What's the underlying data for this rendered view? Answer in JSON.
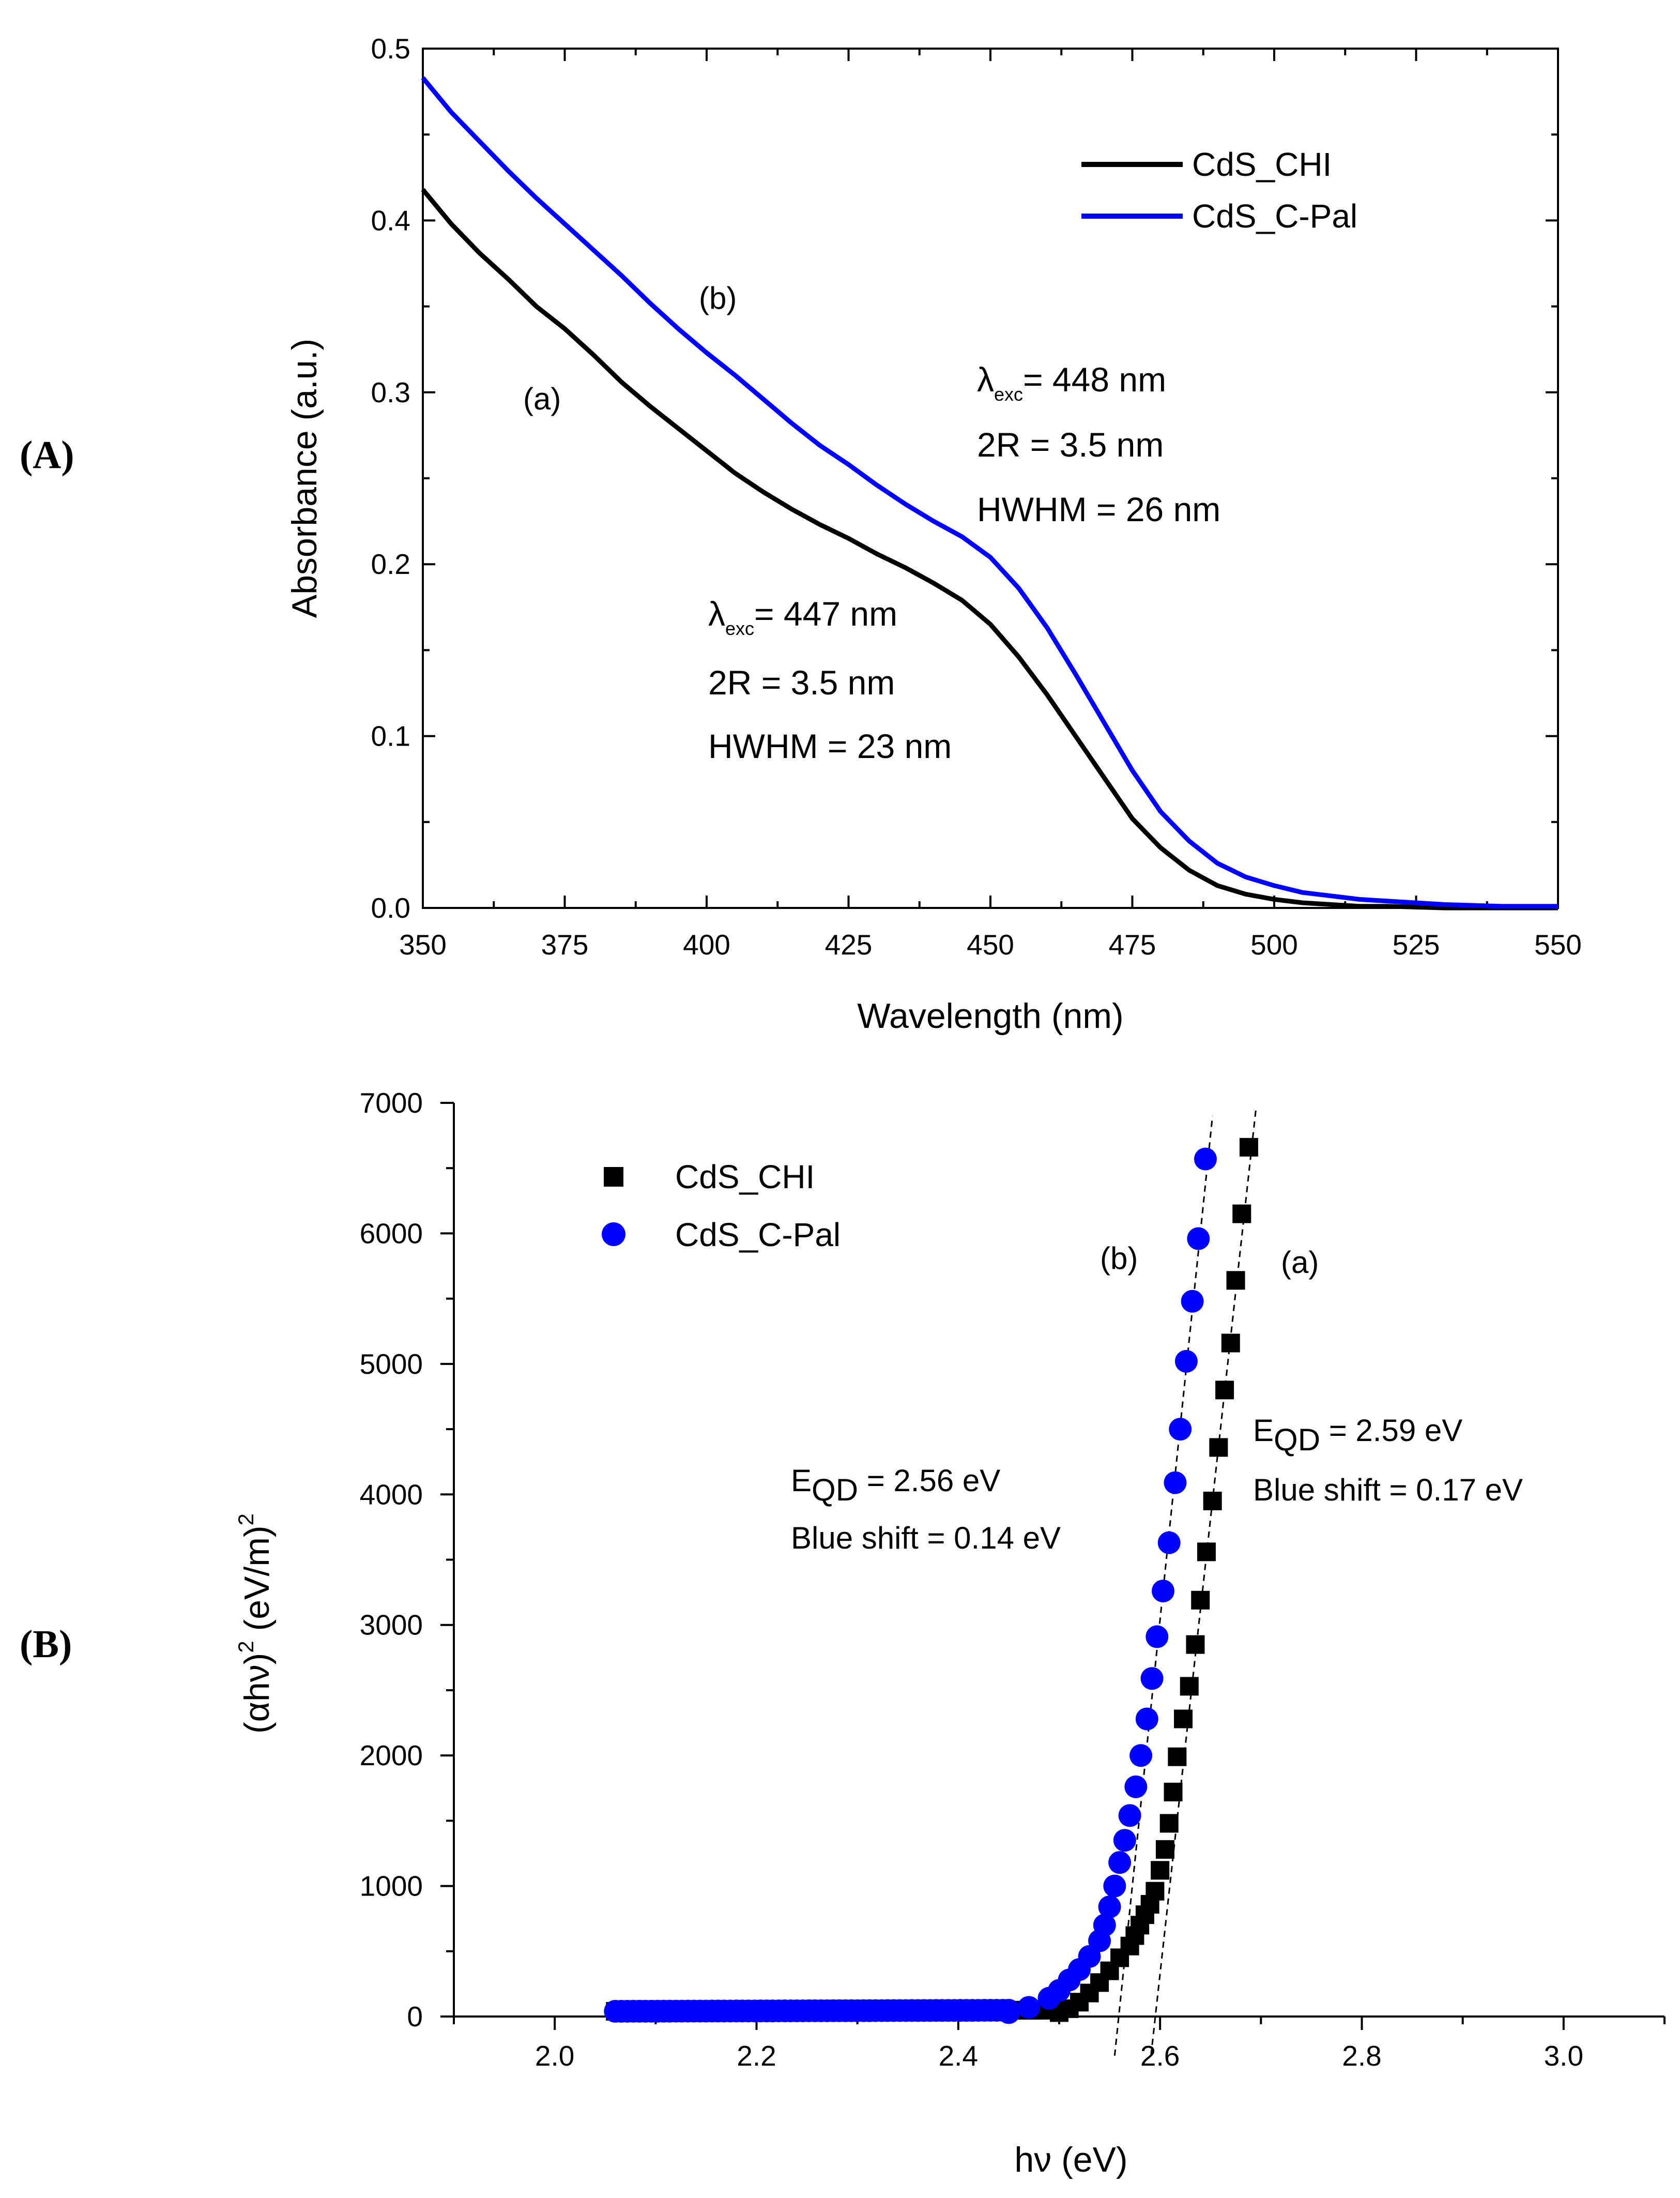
{
  "panels": {
    "a_label": "(A)",
    "b_label": "(B)"
  },
  "chart_data": [
    {
      "type": "line",
      "panel": "A",
      "xlabel": "Wavelength (nm)",
      "ylabel": "Absorbance (a.u.)",
      "xlim": [
        350,
        550
      ],
      "ylim": [
        0.0,
        0.5
      ],
      "xticks": [
        350,
        375,
        400,
        425,
        450,
        475,
        500,
        525,
        550
      ],
      "xtick_labels": [
        "350",
        "375",
        "400",
        "425",
        "450",
        "475",
        "500",
        "525",
        "550"
      ],
      "yticks": [
        0.0,
        0.1,
        0.2,
        0.3,
        0.4,
        0.5
      ],
      "ytick_labels": [
        "0.0",
        "0.1",
        "0.2",
        "0.3",
        "0.4",
        "0.5"
      ],
      "legend_position": "top-right",
      "series": [
        {
          "name": "CdS_CHI",
          "color": "#000000",
          "x": [
            350,
            355,
            360,
            365,
            370,
            375,
            380,
            385,
            390,
            395,
            400,
            405,
            410,
            415,
            420,
            425,
            430,
            435,
            440,
            445,
            450,
            455,
            460,
            465,
            470,
            475,
            480,
            485,
            490,
            495,
            500,
            505,
            510,
            515,
            520,
            530,
            540,
            550
          ],
          "y": [
            0.418,
            0.398,
            0.381,
            0.366,
            0.35,
            0.337,
            0.322,
            0.306,
            0.292,
            0.279,
            0.266,
            0.253,
            0.242,
            0.232,
            0.223,
            0.215,
            0.206,
            0.198,
            0.189,
            0.179,
            0.165,
            0.146,
            0.124,
            0.1,
            0.076,
            0.052,
            0.035,
            0.022,
            0.013,
            0.008,
            0.005,
            0.003,
            0.002,
            0.001,
            0.001,
            0.0,
            0.0,
            0.0
          ]
        },
        {
          "name": "CdS_C-Pal",
          "color": "#0000ff",
          "x": [
            350,
            355,
            360,
            365,
            370,
            375,
            380,
            385,
            390,
            395,
            400,
            405,
            410,
            415,
            420,
            425,
            430,
            435,
            440,
            445,
            450,
            455,
            460,
            465,
            470,
            475,
            480,
            485,
            490,
            495,
            500,
            505,
            510,
            515,
            520,
            530,
            540,
            550
          ],
          "y": [
            0.483,
            0.463,
            0.446,
            0.429,
            0.413,
            0.398,
            0.383,
            0.368,
            0.352,
            0.337,
            0.323,
            0.31,
            0.296,
            0.282,
            0.269,
            0.258,
            0.246,
            0.235,
            0.225,
            0.216,
            0.204,
            0.186,
            0.163,
            0.136,
            0.108,
            0.08,
            0.056,
            0.039,
            0.026,
            0.018,
            0.013,
            0.009,
            0.007,
            0.005,
            0.004,
            0.002,
            0.001,
            0.001
          ]
        }
      ],
      "annotations": {
        "curve_a_label": "(a)",
        "curve_b_label": "(b)",
        "b_lambda_symbol": "λ",
        "b_lambda_sub": "exc",
        "b_lambda_value": "= 448 nm",
        "b_size": "2R = 3.5 nm",
        "b_hwhm": "HWHM = 26 nm",
        "a_lambda_symbol": "λ",
        "a_lambda_sub": "exc",
        "a_lambda_value": "= 447 nm",
        "a_size": "2R = 3.5 nm",
        "a_hwhm": "HWHM = 23 nm"
      }
    },
    {
      "type": "scatter",
      "panel": "B",
      "xlabel": "hν (eV)",
      "ylabel_base": "(αhν)",
      "ylabel_sup1": "2",
      "ylabel_mid": " (eV/m)",
      "ylabel_sup2": "2",
      "xlim": [
        1.9,
        3.1
      ],
      "ylim": [
        0,
        7000
      ],
      "xticks": [
        2.0,
        2.2,
        2.4,
        2.6,
        2.8,
        3.0
      ],
      "xtick_labels": [
        "2.0",
        "2.2",
        "2.4",
        "2.6",
        "2.8",
        "3.0"
      ],
      "yticks": [
        0,
        1000,
        2000,
        3000,
        4000,
        5000,
        6000,
        7000
      ],
      "ytick_labels": [
        "0",
        "1000",
        "2000",
        "3000",
        "4000",
        "5000",
        "6000",
        "7000"
      ],
      "legend_position": "top-left",
      "series": [
        {
          "name": "CdS_CHI",
          "marker": "square",
          "color": "#000000",
          "x_range": [
            2.06,
            2.69
          ],
          "points": [
            [
              2.5,
              30
            ],
            [
              2.51,
              60
            ],
            [
              2.52,
              110
            ],
            [
              2.53,
              180
            ],
            [
              2.54,
              260
            ],
            [
              2.55,
              350
            ],
            [
              2.56,
              450
            ],
            [
              2.57,
              540
            ],
            [
              2.575,
              620
            ],
            [
              2.58,
              700
            ],
            [
              2.585,
              780
            ],
            [
              2.59,
              860
            ],
            [
              2.595,
              960
            ],
            [
              2.6,
              1120
            ],
            [
              2.605,
              1280
            ],
            [
              2.609,
              1480
            ],
            [
              2.613,
              1720
            ],
            [
              2.617,
              1990
            ],
            [
              2.623,
              2280
            ],
            [
              2.629,
              2530
            ],
            [
              2.635,
              2850
            ],
            [
              2.64,
              3190
            ],
            [
              2.646,
              3560
            ],
            [
              2.652,
              3950
            ],
            [
              2.658,
              4360
            ],
            [
              2.664,
              4800
            ],
            [
              2.67,
              5160
            ],
            [
              2.675,
              5640
            ],
            [
              2.681,
              6150
            ],
            [
              2.688,
              6660
            ]
          ]
        },
        {
          "name": "CdS_C-Pal",
          "marker": "circle",
          "color": "#0000ff",
          "x_range": [
            2.06,
            2.65
          ],
          "points": [
            [
              2.45,
              30
            ],
            [
              2.47,
              70
            ],
            [
              2.49,
              140
            ],
            [
              2.5,
              200
            ],
            [
              2.51,
              280
            ],
            [
              2.52,
              360
            ],
            [
              2.53,
              460
            ],
            [
              2.54,
              580
            ],
            [
              2.545,
              700
            ],
            [
              2.55,
              840
            ],
            [
              2.555,
              1000
            ],
            [
              2.56,
              1180
            ],
            [
              2.565,
              1350
            ],
            [
              2.57,
              1540
            ],
            [
              2.576,
              1760
            ],
            [
              2.581,
              2000
            ],
            [
              2.587,
              2280
            ],
            [
              2.592,
              2590
            ],
            [
              2.597,
              2910
            ],
            [
              2.603,
              3260
            ],
            [
              2.609,
              3630
            ],
            [
              2.615,
              4090
            ],
            [
              2.62,
              4500
            ],
            [
              2.626,
              5020
            ],
            [
              2.632,
              5480
            ],
            [
              2.638,
              5960
            ],
            [
              2.645,
              6570
            ]
          ]
        }
      ],
      "fit_lines": [
        {
          "name": "fit-CdS_C-Pal",
          "x": [
            2.555,
            2.652
          ],
          "y": [
            -300,
            6900
          ]
        },
        {
          "name": "fit-CdS_CHI",
          "x": [
            2.591,
            2.695
          ],
          "y": [
            -300,
            6950
          ]
        }
      ],
      "annotations": {
        "curve_b_label": "(b)",
        "curve_a_label": "(a)",
        "b_e_symbol": "E",
        "b_e_sub": "QD",
        "b_e_value": " = 2.56 eV",
        "b_shift": "Blue shift = 0.14 eV",
        "a_e_symbol": "E",
        "a_e_sub": "QD",
        "a_e_value": " = 2.59 eV",
        "a_shift": "Blue shift = 0.17 eV"
      }
    }
  ]
}
